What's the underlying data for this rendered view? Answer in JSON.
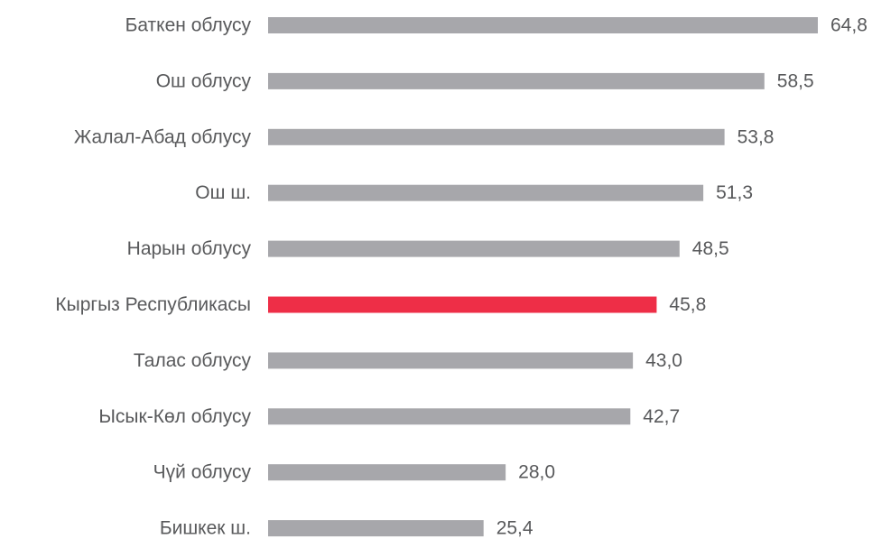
{
  "chart_data": {
    "type": "hbar",
    "categories": [
      "Баткен облусу",
      "Ош облусу",
      "Жалал-Абад облусу",
      "Ош ш.",
      "Нарын облусу",
      "Кыргыз Республикасы",
      "Талас облусу",
      "Ысык-Көл облусу",
      "Чүй облусу",
      "Бишкек ш."
    ],
    "values": [
      64.8,
      58.5,
      53.8,
      51.3,
      48.5,
      45.8,
      43.0,
      42.7,
      28.0,
      25.4
    ],
    "value_labels": [
      "64,8",
      "58,5",
      "53,8",
      "51,3",
      "48,5",
      "45,8",
      "43,0",
      "42,7",
      "28,0",
      "25,4"
    ],
    "colors": [
      "#a7a7ab",
      "#a7a7ab",
      "#a7a7ab",
      "#a7a7ab",
      "#a7a7ab",
      "#ee2e47",
      "#a7a7ab",
      "#a7a7ab",
      "#a7a7ab",
      "#a7a7ab"
    ]
  }
}
